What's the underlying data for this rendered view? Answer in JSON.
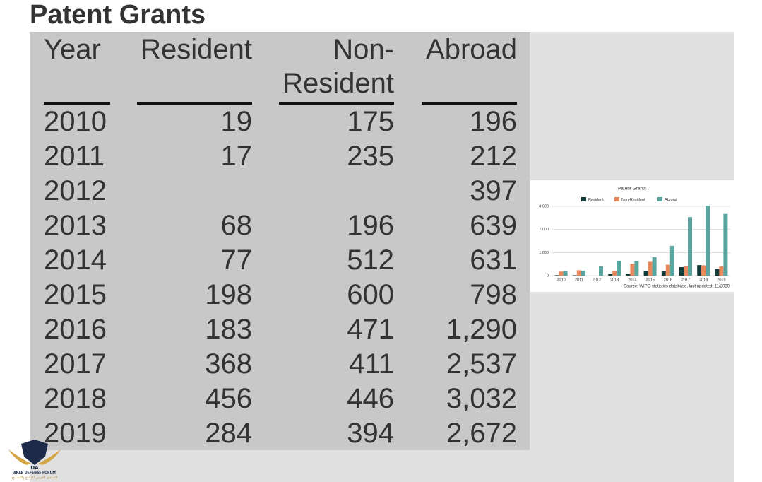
{
  "title": "Patent Grants",
  "table": {
    "header": [
      "Year",
      "Resident",
      "Non-Resident",
      "Abroad"
    ],
    "rows": [
      [
        "2010",
        "19",
        "175",
        "196"
      ],
      [
        "2011",
        "17",
        "235",
        "212"
      ],
      [
        "2012",
        null,
        null,
        "397"
      ],
      [
        "2013",
        "68",
        "196",
        "639"
      ],
      [
        "2014",
        "77",
        "512",
        "631"
      ],
      [
        "2015",
        "198",
        "600",
        "798"
      ],
      [
        "2016",
        "183",
        "471",
        "1,290"
      ],
      [
        "2017",
        "368",
        "411",
        "2,537"
      ],
      [
        "2018",
        "456",
        "446",
        "3,032"
      ],
      [
        "2019",
        "284",
        "394",
        "2,672"
      ]
    ]
  },
  "chart_data": {
    "type": "bar",
    "title": "Patent Grants",
    "categories": [
      "2010",
      "2011",
      "2012",
      "2013",
      "2014",
      "2015",
      "2016",
      "2017",
      "2018",
      "2019"
    ],
    "series": [
      {
        "name": "Resident",
        "color": "#123c3a",
        "values": [
          19,
          17,
          null,
          68,
          77,
          198,
          183,
          368,
          456,
          284
        ]
      },
      {
        "name": "Non-Resident",
        "color": "#e8875a",
        "values": [
          175,
          235,
          null,
          196,
          512,
          600,
          471,
          411,
          446,
          394
        ]
      },
      {
        "name": "Abroad",
        "color": "#5aa5a0",
        "values": [
          196,
          212,
          397,
          639,
          631,
          798,
          1290,
          2537,
          3032,
          2672
        ]
      }
    ],
    "ylim": [
      0,
      3000
    ],
    "yticks": [
      0,
      {
        "value": 1000,
        "label": "1,000"
      },
      {
        "value": 2000,
        "label": "2,000"
      },
      {
        "value": 3000,
        "label": "3,000"
      }
    ],
    "grid": true,
    "legend": "top",
    "source": "Source: WIPO statistics database, last updated: 11/2020"
  },
  "watermark": {
    "name": "ARAB DEFENSE FORUM",
    "initials": "DA",
    "arabic": "المنتدى العربي للدفاع والتسليح"
  }
}
